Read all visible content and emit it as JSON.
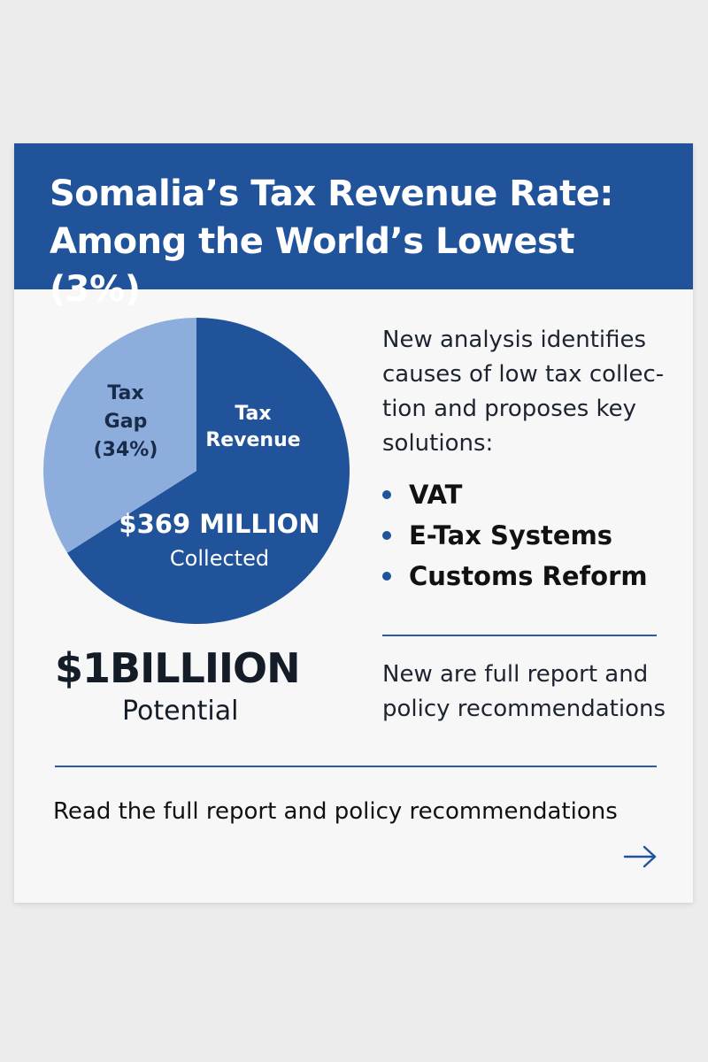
{
  "header": {
    "title": "Somalia’s Tax Revenue Rate: Among the World’s Lowest (3%)"
  },
  "chart_data": {
    "type": "pie",
    "slices": [
      {
        "label_lines": [
          "Tax",
          "Revenue"
        ],
        "value": 66,
        "color": "#21539b",
        "text_color": "#ffffff"
      },
      {
        "label_lines": [
          "Tax",
          "Gap",
          "(34%)"
        ],
        "value": 34,
        "color": "#8daedc",
        "text_color": "#1a2b4a"
      }
    ],
    "center_value": "$369 MILLION",
    "center_caption": "Collected"
  },
  "potential": {
    "value": "$1BILLIION",
    "label": "Potential"
  },
  "analysis": {
    "intro": "New analysis identifies causes of low tax collec-tion and proposes key solutions:",
    "solutions": [
      "VAT",
      "E-Tax Systems",
      "Customs Reform"
    ]
  },
  "promo_text": "New are full report and policy recommendations",
  "cta": {
    "label": "Read the full report and policy recommendations",
    "icon": "arrow-right-icon"
  },
  "colors": {
    "brand_blue": "#21539b",
    "light_blue": "#8daedc",
    "background": "#ececec",
    "card": "#f7f7f8"
  }
}
